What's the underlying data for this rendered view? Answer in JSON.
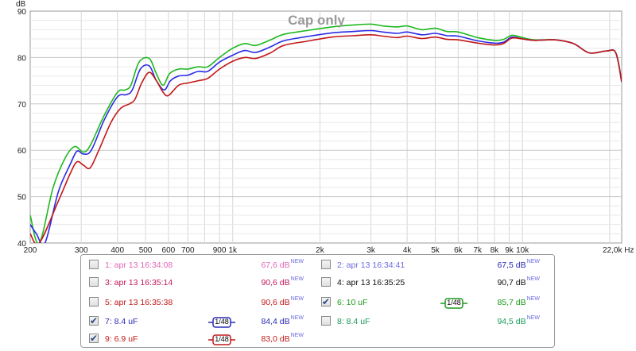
{
  "chart_data": {
    "type": "line",
    "title": "Cap only",
    "ylabel": "dB",
    "xlabel": "",
    "x_scale": "log",
    "xlim": [
      200,
      22000
    ],
    "ylim": [
      40,
      90
    ],
    "grid": true,
    "x_ticks": [
      {
        "v": 200,
        "label": "200"
      },
      {
        "v": 300,
        "label": "300"
      },
      {
        "v": 400,
        "label": "400"
      },
      {
        "v": 500,
        "label": "500"
      },
      {
        "v": 600,
        "label": "600"
      },
      {
        "v": 700,
        "label": "700"
      },
      {
        "v": 900,
        "label": "900"
      },
      {
        "v": 1000,
        "label": "1k"
      },
      {
        "v": 2000,
        "label": "2k"
      },
      {
        "v": 3000,
        "label": "3k"
      },
      {
        "v": 4000,
        "label": "4k"
      },
      {
        "v": 5000,
        "label": "5k"
      },
      {
        "v": 6000,
        "label": "6k"
      },
      {
        "v": 7000,
        "label": "7k"
      },
      {
        "v": 8000,
        "label": "8k"
      },
      {
        "v": 9000,
        "label": "9k"
      },
      {
        "v": 10000,
        "label": "10k"
      },
      {
        "v": 22000,
        "label": "22,0k Hz"
      }
    ],
    "y_ticks": [
      40,
      50,
      60,
      70,
      80,
      90
    ],
    "series": [
      {
        "name": "6: 10 uF",
        "color": "#1fb81f",
        "points": [
          [
            200,
            46
          ],
          [
            215,
            40
          ],
          [
            240,
            52
          ],
          [
            265,
            58.5
          ],
          [
            285,
            60.8
          ],
          [
            305,
            59.6
          ],
          [
            322,
            61
          ],
          [
            360,
            67.5
          ],
          [
            400,
            72.5
          ],
          [
            425,
            73
          ],
          [
            445,
            74
          ],
          [
            475,
            79
          ],
          [
            515,
            79.8
          ],
          [
            545,
            76.5
          ],
          [
            575,
            74
          ],
          [
            605,
            76.5
          ],
          [
            650,
            77.5
          ],
          [
            700,
            77.5
          ],
          [
            760,
            78
          ],
          [
            820,
            78
          ],
          [
            900,
            80
          ],
          [
            1000,
            82
          ],
          [
            1100,
            83
          ],
          [
            1200,
            82.6
          ],
          [
            1350,
            83.8
          ],
          [
            1500,
            85
          ],
          [
            1800,
            85.8
          ],
          [
            2200,
            86.6
          ],
          [
            2600,
            87
          ],
          [
            3000,
            87.2
          ],
          [
            3300,
            86.8
          ],
          [
            3700,
            86.6
          ],
          [
            4000,
            86.8
          ],
          [
            4500,
            86
          ],
          [
            5000,
            86.3
          ],
          [
            5500,
            85.6
          ],
          [
            6000,
            85.5
          ],
          [
            7000,
            84.3
          ],
          [
            8000,
            83.7
          ],
          [
            8600,
            83.9
          ],
          [
            9200,
            84.8
          ],
          [
            10000,
            84.3
          ],
          [
            11000,
            83.8
          ],
          [
            13000,
            83.8
          ],
          [
            15000,
            83
          ],
          [
            17000,
            81
          ],
          [
            19500,
            81.4
          ],
          [
            21000,
            81
          ],
          [
            22000,
            74.8
          ]
        ]
      },
      {
        "name": "7: 8.4 uF",
        "color": "#2a2ae6",
        "points": [
          [
            200,
            44
          ],
          [
            210,
            42
          ],
          [
            225,
            40
          ],
          [
            250,
            51
          ],
          [
            275,
            57
          ],
          [
            290,
            59.8
          ],
          [
            305,
            59.2
          ],
          [
            325,
            60
          ],
          [
            360,
            66.5
          ],
          [
            400,
            71.5
          ],
          [
            430,
            72
          ],
          [
            450,
            73
          ],
          [
            480,
            77.5
          ],
          [
            515,
            78.2
          ],
          [
            545,
            75
          ],
          [
            580,
            73
          ],
          [
            610,
            75
          ],
          [
            650,
            76
          ],
          [
            700,
            76.2
          ],
          [
            760,
            77
          ],
          [
            820,
            77
          ],
          [
            900,
            79
          ],
          [
            1000,
            80.5
          ],
          [
            1100,
            81.5
          ],
          [
            1200,
            81.1
          ],
          [
            1350,
            82.3
          ],
          [
            1500,
            83.6
          ],
          [
            1800,
            84.5
          ],
          [
            2200,
            85.3
          ],
          [
            2600,
            85.6
          ],
          [
            3000,
            85.8
          ],
          [
            3300,
            85.5
          ],
          [
            3700,
            85.2
          ],
          [
            4000,
            85.5
          ],
          [
            4500,
            84.9
          ],
          [
            5000,
            85.2
          ],
          [
            5500,
            84.7
          ],
          [
            6000,
            84.6
          ],
          [
            7000,
            83.6
          ],
          [
            8000,
            83.1
          ],
          [
            8600,
            83.3
          ],
          [
            9200,
            84.4
          ],
          [
            10000,
            84
          ],
          [
            11000,
            83.7
          ],
          [
            13000,
            83.8
          ],
          [
            15000,
            83
          ],
          [
            17000,
            81
          ],
          [
            19500,
            81.4
          ],
          [
            21000,
            81
          ],
          [
            22000,
            74.7
          ]
        ]
      },
      {
        "name": "9: 6.9 uF",
        "color": "#c21818",
        "points": [
          [
            200,
            42
          ],
          [
            215,
            40
          ],
          [
            250,
            49
          ],
          [
            275,
            55
          ],
          [
            290,
            57.5
          ],
          [
            305,
            56.8
          ],
          [
            322,
            56.2
          ],
          [
            345,
            60
          ],
          [
            380,
            66
          ],
          [
            410,
            69
          ],
          [
            440,
            70
          ],
          [
            460,
            71
          ],
          [
            485,
            74.5
          ],
          [
            515,
            76.8
          ],
          [
            545,
            75
          ],
          [
            575,
            72.5
          ],
          [
            600,
            71.8
          ],
          [
            650,
            74
          ],
          [
            700,
            74.5
          ],
          [
            760,
            75
          ],
          [
            820,
            75.5
          ],
          [
            900,
            77.5
          ],
          [
            1000,
            79.2
          ],
          [
            1100,
            80
          ],
          [
            1200,
            79.8
          ],
          [
            1350,
            81
          ],
          [
            1500,
            82.6
          ],
          [
            1800,
            83.5
          ],
          [
            2200,
            84.4
          ],
          [
            2600,
            84.7
          ],
          [
            3000,
            84.9
          ],
          [
            3300,
            84.6
          ],
          [
            3700,
            84.3
          ],
          [
            4000,
            84.6
          ],
          [
            4500,
            84.1
          ],
          [
            5000,
            84.4
          ],
          [
            5500,
            83.9
          ],
          [
            6000,
            83.8
          ],
          [
            7000,
            83.1
          ],
          [
            8000,
            82.7
          ],
          [
            8600,
            83
          ],
          [
            9200,
            84.2
          ],
          [
            10000,
            84
          ],
          [
            11000,
            83.7
          ],
          [
            13000,
            83.8
          ],
          [
            15000,
            83
          ],
          [
            17000,
            81
          ],
          [
            19500,
            81.4
          ],
          [
            21000,
            81
          ],
          [
            22000,
            74.7
          ]
        ]
      }
    ]
  },
  "legend": {
    "items": [
      {
        "label": "1: apr 13 16:34:08",
        "value": "67,6 dB",
        "sup": "NEW",
        "checked": false,
        "color": "#e266b8",
        "value_color": "#e266b8",
        "smooth": ""
      },
      {
        "label": "2: apr 13 16:34:41",
        "value": "67,5 dB",
        "sup": "NEW",
        "checked": false,
        "color": "#6c6ce2",
        "value_color": "#2a2ab8",
        "smooth": ""
      },
      {
        "label": "3: apr 13 16:35:14",
        "value": "90,6 dB",
        "sup": "NEW",
        "checked": false,
        "color": "#c2185b",
        "value_color": "#c2185b",
        "smooth": ""
      },
      {
        "label": "4: apr 13 16:35:25",
        "value": "90,7 dB",
        "sup": "NEW",
        "checked": false,
        "color": "#111111",
        "value_color": "#111111",
        "smooth": ""
      },
      {
        "label": "5: apr 13 16:35:38",
        "value": "90,6 dB",
        "sup": "NEW",
        "checked": false,
        "color": "#c21818",
        "value_color": "#c21818",
        "smooth": ""
      },
      {
        "label": "6: 10 uF",
        "value": "85,7 dB",
        "sup": "NEW",
        "checked": true,
        "color": "#1a9a1a",
        "value_color": "#1a9a1a",
        "smooth": "1/48"
      },
      {
        "label": "7: 8.4 uF",
        "value": "84,4 dB",
        "sup": "NEW",
        "checked": true,
        "color": "#2a2ab8",
        "value_color": "#2a2ab8",
        "smooth": "1/48"
      },
      {
        "label": "8: 8.4 uF",
        "value": "94,5 dB",
        "sup": "NEW",
        "checked": false,
        "color": "#1a9a5a",
        "value_color": "#1a9a5a",
        "smooth": ""
      },
      {
        "label": "9: 6.9 uF",
        "value": "83,0 dB",
        "sup": "NEW",
        "checked": true,
        "color": "#c21818",
        "value_color": "#c21818",
        "smooth": "1/48"
      }
    ]
  }
}
